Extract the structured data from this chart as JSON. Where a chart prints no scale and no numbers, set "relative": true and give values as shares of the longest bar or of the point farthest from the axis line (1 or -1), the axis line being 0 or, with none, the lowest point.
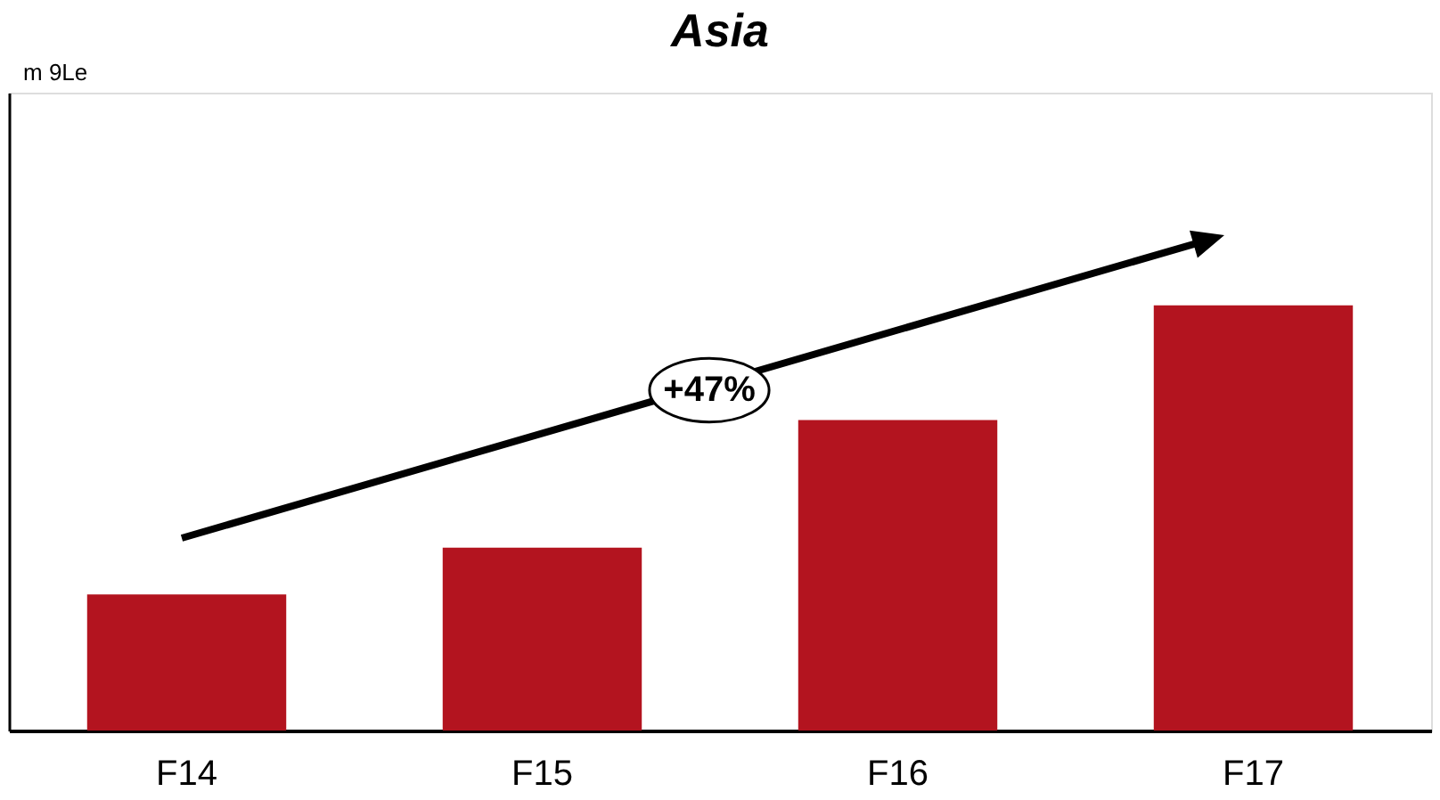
{
  "chart_data": {
    "type": "bar",
    "title": "Asia",
    "relative": true,
    "categories": [
      "F14",
      "F15",
      "F16",
      "F17"
    ],
    "values": [
      0.32,
      0.43,
      0.73,
      1
    ],
    "color": "#b3141f",
    "annotations": [
      "m 9Le",
      "+47%"
    ],
    "grid": false
  }
}
